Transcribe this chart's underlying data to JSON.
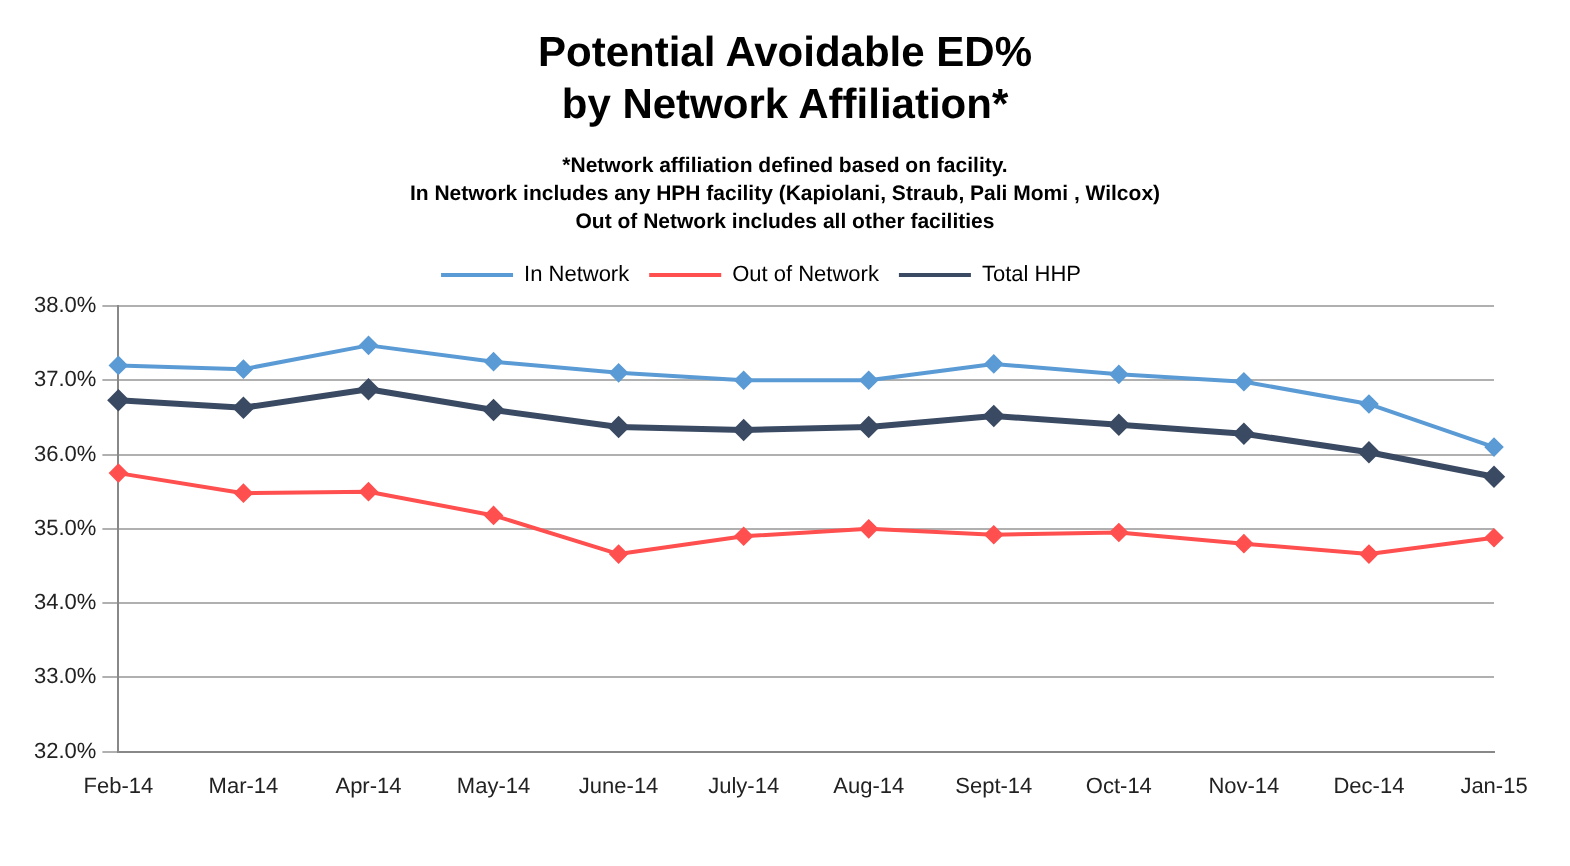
{
  "chart_data": {
    "type": "line",
    "title": "Potential Avoidable ED%\nby Network Affiliation*",
    "subtitle": "*Network affiliation defined based on facility.\nIn Network includes any HPH facility (Kapiolani, Straub, Pali Momi , Wilcox)\nOut of Network includes all other facilities",
    "categories": [
      "Feb-14",
      "Mar-14",
      "Apr-14",
      "May-14",
      "June-14",
      "July-14",
      "Aug-14",
      "Sept-14",
      "Oct-14",
      "Nov-14",
      "Dec-14",
      "Jan-15"
    ],
    "series": [
      {
        "name": "In Network",
        "color": "#5b9bd5",
        "values": [
          37.2,
          37.15,
          37.47,
          37.25,
          37.1,
          37.0,
          37.0,
          37.22,
          37.08,
          36.98,
          36.68,
          36.1
        ]
      },
      {
        "name": "Out of Network",
        "color": "#ff4f4f",
        "values": [
          35.75,
          35.48,
          35.5,
          35.18,
          34.66,
          34.9,
          35.0,
          34.92,
          34.95,
          34.8,
          34.66,
          34.88
        ]
      },
      {
        "name": "Total HHP",
        "color": "#3b4a63",
        "values": [
          36.73,
          36.63,
          36.88,
          36.6,
          36.37,
          36.33,
          36.37,
          36.52,
          36.4,
          36.28,
          36.03,
          35.7
        ]
      }
    ],
    "ylim": [
      32,
      38
    ],
    "yticks": [
      {
        "value": 32,
        "label": "32.0%"
      },
      {
        "value": 33,
        "label": "33.0%"
      },
      {
        "value": 34,
        "label": "34.0%"
      },
      {
        "value": 35,
        "label": "35.0%"
      },
      {
        "value": 36,
        "label": "36.0%"
      },
      {
        "value": 37,
        "label": "37.0%"
      },
      {
        "value": 38,
        "label": "38.0%"
      }
    ],
    "grid": "y",
    "legend": "top",
    "marker": "diamond",
    "line_style": "solid"
  }
}
